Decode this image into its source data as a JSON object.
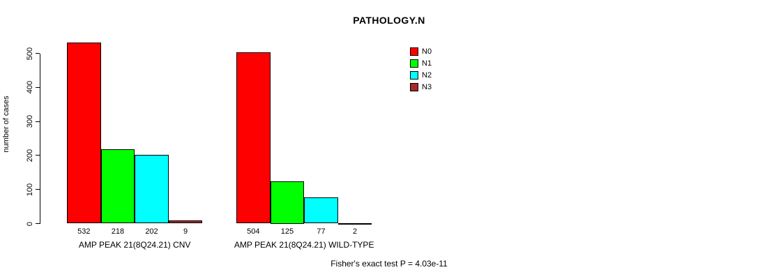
{
  "chart_data": {
    "type": "bar",
    "title": "PATHOLOGY.N",
    "ylabel": "number of cases",
    "xlabel": "",
    "ylim": [
      0,
      500
    ],
    "yticks": [
      0,
      100,
      200,
      300,
      400,
      500
    ],
    "grid": false,
    "legend_position": "top-right-inside",
    "categories": [
      "AMP PEAK 21(8Q24.21) CNV",
      "AMP PEAK 21(8Q24.21) WILD-TYPE"
    ],
    "series": [
      {
        "name": "N0",
        "color": "#FF0000",
        "values": [
          532,
          504
        ]
      },
      {
        "name": "N1",
        "color": "#00FF00",
        "values": [
          218,
          125
        ]
      },
      {
        "name": "N2",
        "color": "#00FFFF",
        "values": [
          202,
          77
        ]
      },
      {
        "name": "N3",
        "color": "#A52A2A",
        "values": [
          9,
          2
        ]
      }
    ],
    "bar_value_labels": [
      [
        532,
        218,
        202,
        9
      ],
      [
        504,
        125,
        77,
        2
      ]
    ],
    "annotation": "Fisher's exact test P = 4.03e-11"
  },
  "colors": {
    "background": "#FFFFFF",
    "axis": "#000000",
    "bar_border": "#000000"
  }
}
